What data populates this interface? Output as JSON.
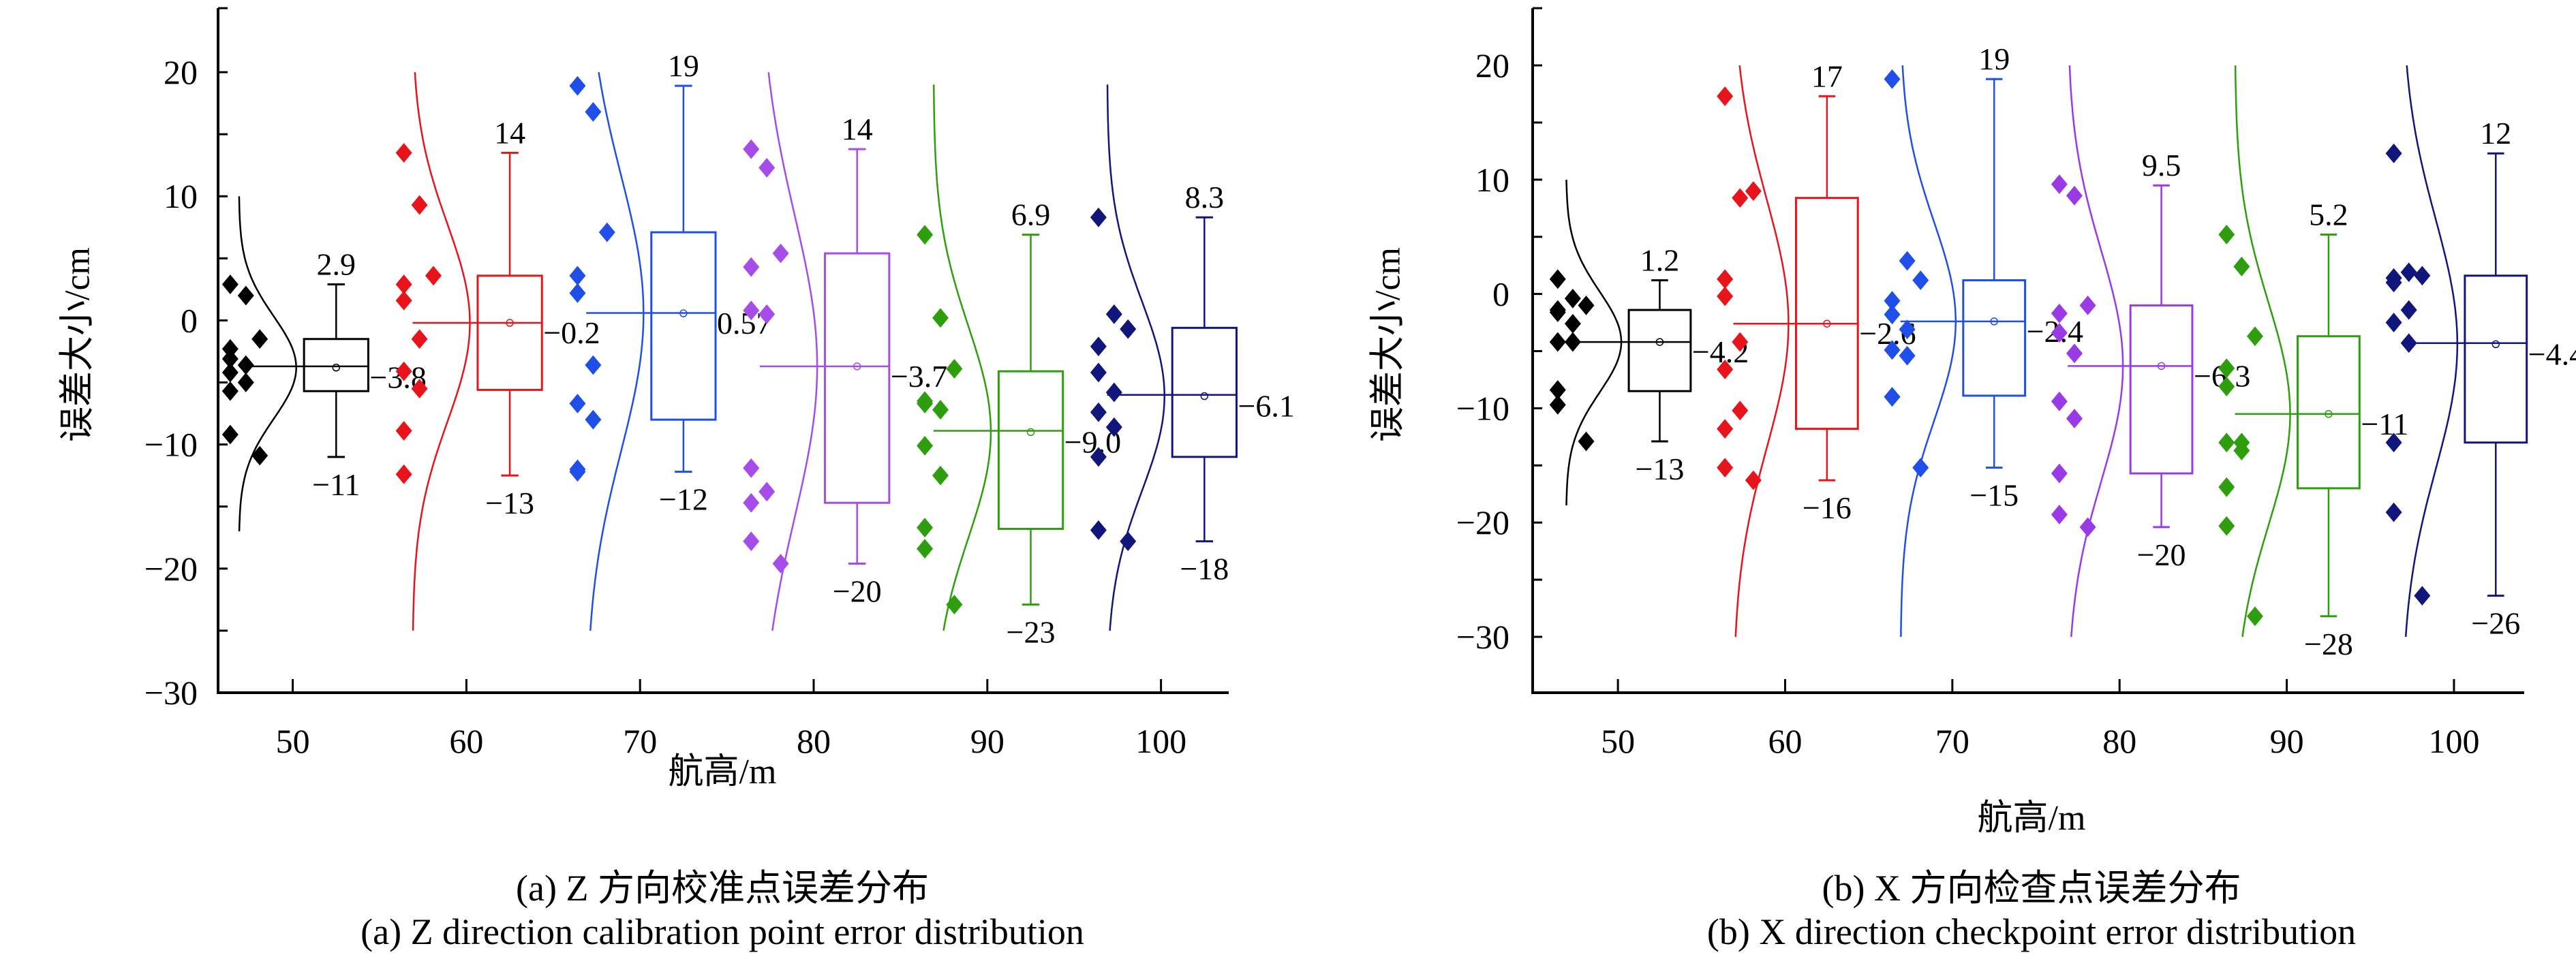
{
  "chart_data": [
    {
      "type": "box",
      "ylabel": "误差大小/cm",
      "xlabel": "航高/m",
      "caption_cn": "(a) Z 方向校准点误差分布",
      "caption_en": "(a) Z direction calibration point error distribution",
      "categories": [
        50,
        60,
        70,
        80,
        90,
        100
      ],
      "xlim": [
        45.7,
        103.9
      ],
      "ylim": [
        -30,
        25.2
      ],
      "yticks": [
        20,
        10,
        0,
        -10,
        -20,
        -30
      ],
      "series": [
        {
          "category": 50,
          "color": "#000000",
          "points": [
            2.9,
            2.0,
            -1.5,
            -2.3,
            -3.1,
            -3.6,
            -4.2,
            -5.0,
            -5.7,
            -9.2,
            -10.9
          ],
          "max": 2.9,
          "q3": -1.5,
          "median": -3.7,
          "mean": -3.8,
          "q1": -5.7,
          "min": -11,
          "max_label": "2.9",
          "mean_label": "−3.8",
          "min_label": "−11",
          "curve_range": [
            10,
            -17
          ]
        },
        {
          "category": 60,
          "color": "#e8141b",
          "points": [
            13.5,
            9.3,
            3.6,
            2.9,
            1.6,
            -1.5,
            -4.1,
            -5.5,
            -8.9,
            -12.4
          ],
          "max": 13.5,
          "q3": 3.6,
          "median": -0.2,
          "mean": -0.2,
          "q1": -5.6,
          "min": -12.5,
          "max_label": "14",
          "mean_label": "−0.2",
          "min_label": "−13",
          "curve_range": [
            20,
            -25
          ]
        },
        {
          "category": 70,
          "color": "#1f4fe8",
          "points": [
            18.9,
            16.8,
            7.1,
            3.6,
            2.2,
            -3.6,
            -6.7,
            -8.0,
            -12.2,
            -12.0
          ],
          "max": 18.9,
          "q3": 7.1,
          "median": 0.6,
          "mean": 0.57,
          "q1": -8.0,
          "min": -12.2,
          "max_label": "19",
          "mean_label": "0.57",
          "min_label": "−12",
          "curve_range": [
            20,
            -25
          ]
        },
        {
          "category": 80,
          "color": "#a64ce8",
          "points": [
            13.8,
            12.3,
            5.4,
            4.3,
            0.8,
            0.5,
            -11.9,
            -13.8,
            -14.7,
            -17.8,
            -19.6
          ],
          "max": 13.8,
          "q3": 5.4,
          "median": -3.7,
          "mean": -3.7,
          "q1": -14.7,
          "min": -19.6,
          "max_label": "14",
          "mean_label": "−3.7",
          "min_label": "−20",
          "curve_range": [
            20,
            -25
          ]
        },
        {
          "category": 90,
          "color": "#2e9e0e",
          "points": [
            6.9,
            0.2,
            -3.9,
            -6.7,
            -6.5,
            -7.2,
            -10.1,
            -12.5,
            -16.7,
            -18.4,
            -22.9
          ],
          "max": 6.9,
          "q3": -4.1,
          "median": -8.9,
          "mean": -9.0,
          "q1": -16.8,
          "min": -22.9,
          "max_label": "6.9",
          "mean_label": "−9.0",
          "min_label": "−23",
          "curve_range": [
            19,
            -25
          ]
        },
        {
          "category": 100,
          "color": "#10167a",
          "points": [
            8.3,
            0.5,
            -0.7,
            -2.1,
            -4.2,
            -5.8,
            -7.4,
            -8.6,
            -11.0,
            -16.9,
            -17.8
          ],
          "max": 8.3,
          "q3": -0.6,
          "median": -6.0,
          "mean": -6.1,
          "q1": -11.0,
          "min": -17.8,
          "max_label": "8.3",
          "mean_label": "−6.1",
          "min_label": "−18",
          "curve_range": [
            19,
            -25
          ]
        }
      ]
    },
    {
      "type": "box",
      "ylabel": "误差大小/cm",
      "xlabel": "航高/m",
      "caption_cn": "(b) X 方向检查点误差分布",
      "caption_en": "(b) X direction checkpoint error distribution",
      "categories": [
        50,
        60,
        70,
        80,
        90,
        100
      ],
      "xlim": [
        44.9,
        104.2
      ],
      "ylim": [
        -35,
        25
      ],
      "yticks": [
        20,
        10,
        0,
        -10,
        -20,
        -30
      ],
      "series": [
        {
          "category": 50,
          "color": "#000000",
          "points": [
            1.3,
            -0.4,
            -1.0,
            -1.4,
            -1.6,
            -2.6,
            -4.2,
            -4.2,
            -8.4,
            -9.7,
            -12.9
          ],
          "max": 1.2,
          "q3": -1.4,
          "median": -4.2,
          "mean": -4.2,
          "q1": -8.5,
          "min": -12.9,
          "max_label": "1.2",
          "mean_label": "−4.2",
          "min_label": "−13",
          "curve_range": [
            10,
            -18.5
          ]
        },
        {
          "category": 60,
          "color": "#e8141b",
          "points": [
            17.3,
            8.4,
            9.0,
            1.3,
            -0.2,
            -4.2,
            -6.6,
            -10.2,
            -11.8,
            -15.2,
            -16.3
          ],
          "max": 17.3,
          "q3": 8.4,
          "median": -2.6,
          "mean": -2.6,
          "q1": -11.8,
          "min": -16.3,
          "max_label": "17",
          "mean_label": "−2.6",
          "min_label": "−16",
          "curve_range": [
            20,
            -30
          ]
        },
        {
          "category": 70,
          "color": "#1f4fe8",
          "points": [
            18.8,
            2.9,
            1.2,
            -0.6,
            -1.8,
            -3.1,
            -4.9,
            -5.4,
            -9.0,
            -9.0,
            -15.2
          ],
          "max": 18.8,
          "q3": 1.2,
          "median": -2.4,
          "mean": -2.4,
          "q1": -8.9,
          "min": -15.2,
          "max_label": "19",
          "mean_label": "−2.4",
          "min_label": "−15",
          "curve_range": [
            20,
            -30
          ]
        },
        {
          "category": 80,
          "color": "#9a3ae6",
          "points": [
            9.6,
            8.6,
            -1.0,
            -1.7,
            -3.4,
            -5.2,
            -9.4,
            -10.9,
            -15.7,
            -19.3,
            -20.4
          ],
          "max": 9.5,
          "q3": -1.0,
          "median": -6.3,
          "mean": -6.3,
          "q1": -15.7,
          "min": -20.4,
          "max_label": "9.5",
          "mean_label": "−6.3",
          "min_label": "−20",
          "curve_range": [
            20,
            -30
          ]
        },
        {
          "category": 90,
          "color": "#2e9e0e",
          "points": [
            5.2,
            2.4,
            -3.7,
            -6.5,
            -8.1,
            -13.0,
            -13.0,
            -13.7,
            -16.9,
            -20.3,
            -28.2
          ],
          "max": 5.2,
          "q3": -3.7,
          "median": -10.5,
          "mean": -10.5,
          "q1": -17.0,
          "min": -28.2,
          "max_label": "5.2",
          "mean_label": "−11",
          "min_label": "−28",
          "curve_range": [
            20,
            -30
          ]
        },
        {
          "category": 100,
          "color": "#10167a",
          "points": [
            12.3,
            1.9,
            1.6,
            1.4,
            1.0,
            -1.4,
            -2.5,
            -4.3,
            -13.0,
            -19.1,
            -26.4
          ],
          "max": 12.3,
          "q3": 1.6,
          "median": -4.3,
          "mean": -4.4,
          "q1": -13.0,
          "min": -26.4,
          "max_label": "12",
          "mean_label": "−4.4",
          "min_label": "−26",
          "curve_range": [
            20,
            -30
          ]
        }
      ]
    }
  ]
}
